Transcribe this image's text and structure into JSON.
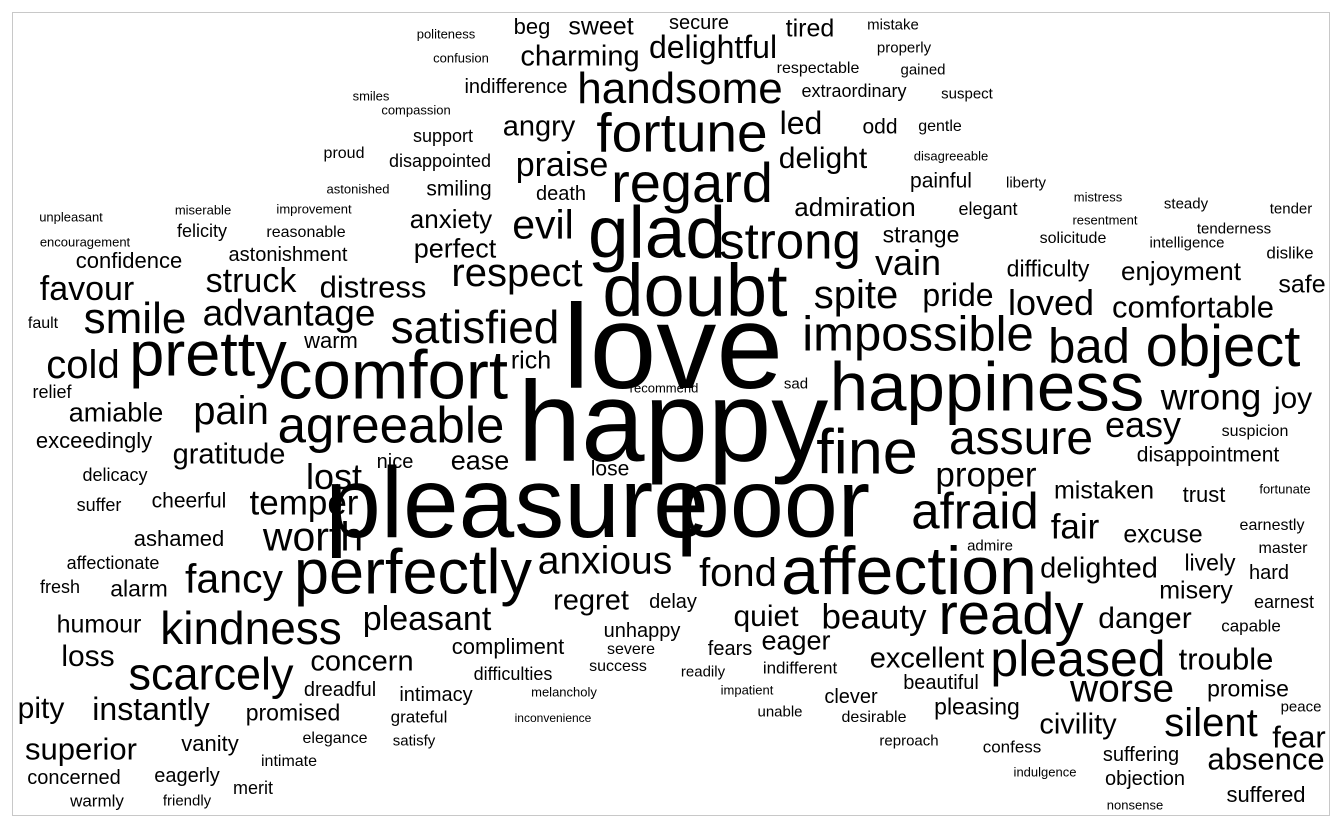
{
  "words": [
    {
      "text": "love",
      "freq": 100
    },
    {
      "text": "happy",
      "freq": 95
    },
    {
      "text": "pleasure",
      "freq": 84
    },
    {
      "text": "poor",
      "freq": 82
    },
    {
      "text": "doubt",
      "freq": 64
    },
    {
      "text": "glad",
      "freq": 63
    },
    {
      "text": "happiness",
      "freq": 60
    },
    {
      "text": "comfort",
      "freq": 60
    },
    {
      "text": "affection",
      "freq": 59
    },
    {
      "text": "perfectly",
      "freq": 55
    },
    {
      "text": "fine",
      "freq": 55
    },
    {
      "text": "pretty",
      "freq": 55
    },
    {
      "text": "object",
      "freq": 51
    },
    {
      "text": "ready",
      "freq": 51
    },
    {
      "text": "regard",
      "freq": 50
    },
    {
      "text": "fortune",
      "freq": 49
    },
    {
      "text": "strong",
      "freq": 46
    },
    {
      "text": "agreeable",
      "freq": 46
    },
    {
      "text": "afraid",
      "freq": 46
    },
    {
      "text": "pleased",
      "freq": 45
    },
    {
      "text": "bad",
      "freq": 44
    },
    {
      "text": "impossible",
      "freq": 44
    },
    {
      "text": "assure",
      "freq": 43
    },
    {
      "text": "satisfied",
      "freq": 42
    },
    {
      "text": "kindness",
      "freq": 42
    },
    {
      "text": "scarcely",
      "freq": 41
    },
    {
      "text": "handsome",
      "freq": 40
    },
    {
      "text": "smile",
      "freq": 40
    },
    {
      "text": "evil",
      "freq": 38
    },
    {
      "text": "fancy",
      "freq": 38
    },
    {
      "text": "worth",
      "freq": 38
    },
    {
      "text": "respect",
      "freq": 37
    },
    {
      "text": "spite",
      "freq": 37
    },
    {
      "text": "pain",
      "freq": 37
    },
    {
      "text": "silent",
      "freq": 37
    },
    {
      "text": "fond",
      "freq": 37
    },
    {
      "text": "cold",
      "freq": 37
    },
    {
      "text": "worse",
      "freq": 36
    },
    {
      "text": "anxious",
      "freq": 36
    },
    {
      "text": "wrong",
      "freq": 35
    },
    {
      "text": "advantage",
      "freq": 35
    },
    {
      "text": "lost",
      "freq": 34
    },
    {
      "text": "loved",
      "freq": 34
    },
    {
      "text": "vain",
      "freq": 34
    },
    {
      "text": "easy",
      "freq": 34
    },
    {
      "text": "fair",
      "freq": 33
    },
    {
      "text": "temper",
      "freq": 33
    },
    {
      "text": "proper",
      "freq": 33
    },
    {
      "text": "beauty",
      "freq": 33
    },
    {
      "text": "delightful",
      "freq": 31
    },
    {
      "text": "pleasant",
      "freq": 32
    },
    {
      "text": "praise",
      "freq": 32
    },
    {
      "text": "pride",
      "freq": 31
    },
    {
      "text": "struck",
      "freq": 32
    },
    {
      "text": "favour",
      "freq": 32
    },
    {
      "text": "instantly",
      "freq": 31
    },
    {
      "text": "superior",
      "freq": 30
    },
    {
      "text": "comfortable",
      "freq": 30
    },
    {
      "text": "fear",
      "freq": 30
    },
    {
      "text": "trouble",
      "freq": 30
    },
    {
      "text": "absence",
      "freq": 30
    },
    {
      "text": "distress",
      "freq": 30
    },
    {
      "text": "led",
      "freq": 31
    },
    {
      "text": "delight",
      "freq": 29
    },
    {
      "text": "danger",
      "freq": 29
    },
    {
      "text": "joy",
      "freq": 29
    },
    {
      "text": "quiet",
      "freq": 29
    },
    {
      "text": "angry",
      "freq": 28
    },
    {
      "text": "charming",
      "freq": 28
    },
    {
      "text": "loss",
      "freq": 29
    },
    {
      "text": "pity",
      "freq": 29
    },
    {
      "text": "excellent",
      "freq": 28
    },
    {
      "text": "regret",
      "freq": 28
    },
    {
      "text": "concern",
      "freq": 28
    },
    {
      "text": "gratitude",
      "freq": 28
    },
    {
      "text": "civility",
      "freq": 28
    },
    {
      "text": "delighted",
      "freq": 28
    },
    {
      "text": "amiable",
      "freq": 27
    },
    {
      "text": "ease",
      "freq": 27
    },
    {
      "text": "perfect",
      "freq": 27
    },
    {
      "text": "eager",
      "freq": 27
    },
    {
      "text": "anxiety",
      "freq": 26
    },
    {
      "text": "admiration",
      "freq": 26
    },
    {
      "text": "enjoyment",
      "freq": 26
    },
    {
      "text": "sweet",
      "freq": 25
    },
    {
      "text": "mistaken",
      "freq": 25
    },
    {
      "text": "excuse",
      "freq": 25
    },
    {
      "text": "misery",
      "freq": 25
    },
    {
      "text": "safe",
      "freq": 25
    },
    {
      "text": "strange",
      "freq": 24
    },
    {
      "text": "rich",
      "freq": 25
    },
    {
      "text": "tired",
      "freq": 25
    },
    {
      "text": "beg",
      "freq": 23
    },
    {
      "text": "humour",
      "freq": 25
    },
    {
      "text": "promise",
      "freq": 24
    },
    {
      "text": "alarm",
      "freq": 24
    },
    {
      "text": "promised",
      "freq": 24
    },
    {
      "text": "difficulty",
      "freq": 24
    },
    {
      "text": "lively",
      "freq": 24
    },
    {
      "text": "pleasing",
      "freq": 24
    },
    {
      "text": "suffered",
      "freq": 23
    },
    {
      "text": "ashamed",
      "freq": 23
    },
    {
      "text": "trust",
      "freq": 23
    },
    {
      "text": "exceedingly",
      "freq": 23
    },
    {
      "text": "confidence",
      "freq": 23
    },
    {
      "text": "odd",
      "freq": 22
    },
    {
      "text": "warm",
      "freq": 23
    },
    {
      "text": "compliment",
      "freq": 23
    },
    {
      "text": "vanity",
      "freq": 23
    },
    {
      "text": "smiling",
      "freq": 22
    },
    {
      "text": "disappointment",
      "freq": 22
    },
    {
      "text": "painful",
      "freq": 22
    },
    {
      "text": "cheerful",
      "freq": 22
    },
    {
      "text": "lose",
      "freq": 22
    },
    {
      "text": "suffering",
      "freq": 21
    },
    {
      "text": "dreadful",
      "freq": 21
    },
    {
      "text": "delay",
      "freq": 21
    },
    {
      "text": "secure",
      "freq": 21
    },
    {
      "text": "indifference",
      "freq": 21
    },
    {
      "text": "eagerly",
      "freq": 21
    },
    {
      "text": "fears",
      "freq": 21
    },
    {
      "text": "astonishment",
      "freq": 21
    },
    {
      "text": "death",
      "freq": 21
    },
    {
      "text": "clever",
      "freq": 21
    },
    {
      "text": "intimacy",
      "freq": 21
    },
    {
      "text": "unhappy",
      "freq": 21
    },
    {
      "text": "concerned",
      "freq": 21
    },
    {
      "text": "nice",
      "freq": 21
    },
    {
      "text": "hard",
      "freq": 21
    },
    {
      "text": "beautiful",
      "freq": 21
    },
    {
      "text": "objection",
      "freq": 21
    },
    {
      "text": "extraordinary",
      "freq": 20
    },
    {
      "text": "fresh",
      "freq": 20
    },
    {
      "text": "difficulties",
      "freq": 20
    },
    {
      "text": "earnest",
      "freq": 20
    },
    {
      "text": "suffer",
      "freq": 20
    },
    {
      "text": "elegant",
      "freq": 20
    },
    {
      "text": "merit",
      "freq": 20
    },
    {
      "text": "delicacy",
      "freq": 20
    },
    {
      "text": "felicity",
      "freq": 20
    },
    {
      "text": "relief",
      "freq": 20
    },
    {
      "text": "disappointed",
      "freq": 20
    },
    {
      "text": "affectionate",
      "freq": 20
    },
    {
      "text": "support",
      "freq": 20
    },
    {
      "text": "warmly",
      "freq": 19
    },
    {
      "text": "dislike",
      "freq": 19
    },
    {
      "text": "grateful",
      "freq": 19
    },
    {
      "text": "confess",
      "freq": 19
    },
    {
      "text": "indifferent",
      "freq": 19
    },
    {
      "text": "capable",
      "freq": 19
    },
    {
      "text": "master",
      "freq": 18
    },
    {
      "text": "intimate",
      "freq": 18
    },
    {
      "text": "suspicion",
      "freq": 18
    },
    {
      "text": "solicitude",
      "freq": 18
    },
    {
      "text": "elegance",
      "freq": 18
    },
    {
      "text": "respectable",
      "freq": 18
    },
    {
      "text": "reasonable",
      "freq": 18
    },
    {
      "text": "fault",
      "freq": 18
    },
    {
      "text": "earnestly",
      "freq": 18
    },
    {
      "text": "desirable",
      "freq": 18
    },
    {
      "text": "success",
      "freq": 18
    },
    {
      "text": "gentle",
      "freq": 18
    },
    {
      "text": "proud",
      "freq": 18
    },
    {
      "text": "severe",
      "freq": 18
    },
    {
      "text": "admire",
      "freq": 17
    },
    {
      "text": "unable",
      "freq": 17
    },
    {
      "text": "sad",
      "freq": 17
    },
    {
      "text": "tender",
      "freq": 17
    },
    {
      "text": "steady",
      "freq": 17
    },
    {
      "text": "liberty",
      "freq": 17
    },
    {
      "text": "satisfy",
      "freq": 17
    },
    {
      "text": "friendly",
      "freq": 17
    },
    {
      "text": "reproach",
      "freq": 17
    },
    {
      "text": "impatient",
      "freq": 16
    },
    {
      "text": "readily",
      "freq": 17
    },
    {
      "text": "intelligence",
      "freq": 17
    },
    {
      "text": "mistake",
      "freq": 17
    },
    {
      "text": "suspect",
      "freq": 17
    },
    {
      "text": "gained",
      "freq": 17
    },
    {
      "text": "properly",
      "freq": 17
    },
    {
      "text": "fortunate",
      "freq": 16
    },
    {
      "text": "peace",
      "freq": 17
    },
    {
      "text": "tenderness",
      "freq": 17
    },
    {
      "text": "resentment",
      "freq": 16
    },
    {
      "text": "disagreeable",
      "freq": 16
    },
    {
      "text": "mistress",
      "freq": 16
    },
    {
      "text": "indulgence",
      "freq": 16
    },
    {
      "text": "miserable",
      "freq": 16
    },
    {
      "text": "melancholy",
      "freq": 16
    },
    {
      "text": "astonished",
      "freq": 16
    },
    {
      "text": "smiles",
      "freq": 16
    },
    {
      "text": "politeness",
      "freq": 16
    },
    {
      "text": "nonsense",
      "freq": 16
    },
    {
      "text": "encouragement",
      "freq": 16
    },
    {
      "text": "recommend",
      "freq": 16
    },
    {
      "text": "confusion",
      "freq": 16
    },
    {
      "text": "compassion",
      "freq": 16
    },
    {
      "text": "unpleasant",
      "freq": 16
    },
    {
      "text": "improvement",
      "freq": 16
    },
    {
      "text": "inconvenience",
      "freq": 15
    }
  ]
}
